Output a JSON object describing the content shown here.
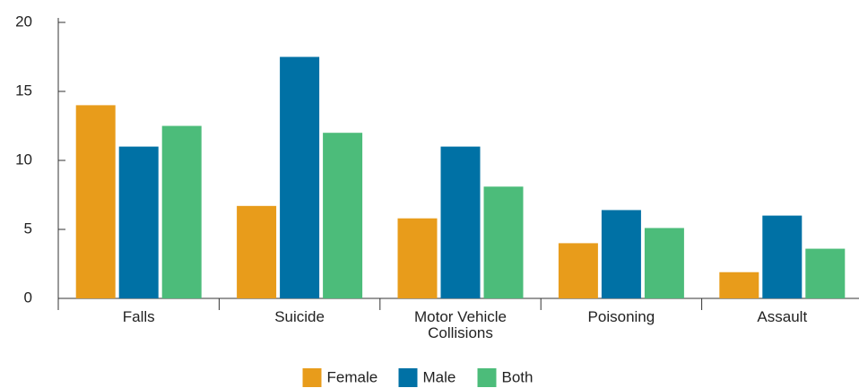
{
  "chart_data": {
    "type": "bar",
    "categories": [
      "Falls",
      "Suicide",
      "Motor Vehicle Collisions",
      "Poisoning",
      "Assault"
    ],
    "series": [
      {
        "name": "Female",
        "color": "#e89c1b",
        "values": [
          14,
          6.7,
          5.8,
          4,
          1.9
        ]
      },
      {
        "name": "Male",
        "color": "#0071a5",
        "values": [
          11,
          17.5,
          11,
          6.4,
          6
        ]
      },
      {
        "name": "Both",
        "color": "#4cbc7a",
        "values": [
          12.5,
          12,
          8.1,
          5.1,
          3.6
        ]
      }
    ],
    "ylim": [
      0,
      20
    ],
    "yticks": [
      0,
      5,
      10,
      15,
      20
    ],
    "grid": false,
    "legend": "bottom"
  }
}
